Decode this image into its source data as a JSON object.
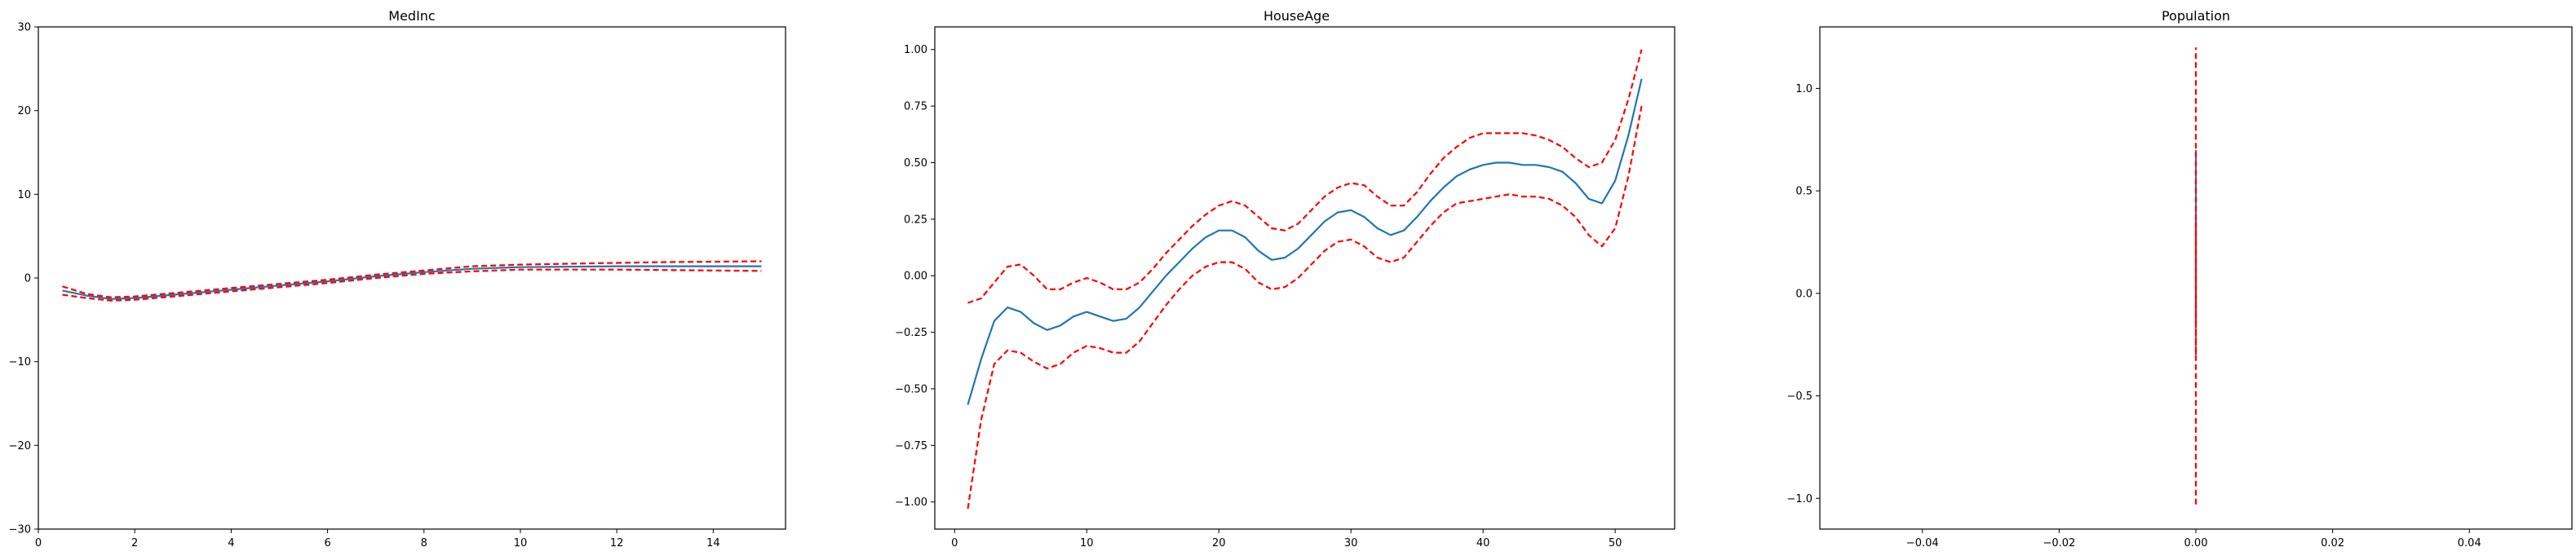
{
  "chart_data": [
    {
      "type": "line",
      "title": "MedInc",
      "xlabel": "",
      "ylabel": "",
      "xlim": [
        0,
        15.5
      ],
      "ylim": [
        -30,
        30
      ],
      "xticks": [
        0,
        2,
        4,
        6,
        8,
        10,
        12,
        14
      ],
      "yticks": [
        -30,
        -20,
        -10,
        0,
        10,
        20,
        30
      ],
      "xtick_labels": [
        "0",
        "2",
        "4",
        "6",
        "8",
        "10",
        "12",
        "14"
      ],
      "ytick_labels": [
        "−30",
        "−20",
        "−10",
        "0",
        "10",
        "20",
        "30"
      ],
      "grid": false,
      "series": [
        {
          "role": "estimate",
          "color": "#1f77b4",
          "dash": "solid",
          "x": [
            0.5,
            1,
            1.5,
            2,
            3,
            4,
            5,
            6,
            7,
            8,
            9,
            10,
            11,
            12,
            13,
            14,
            15
          ],
          "y": [
            -1.5,
            -2.1,
            -2.5,
            -2.4,
            -1.9,
            -1.4,
            -0.9,
            -0.4,
            0.2,
            0.7,
            1.1,
            1.3,
            1.35,
            1.4,
            1.4,
            1.4,
            1.4
          ]
        },
        {
          "role": "upper-bound",
          "color": "#ff0000",
          "dash": "dashed",
          "x": [
            0.5,
            1,
            1.5,
            2,
            3,
            4,
            5,
            6,
            7,
            8,
            9,
            10,
            11,
            12,
            13,
            14,
            15
          ],
          "y": [
            -1.0,
            -1.9,
            -2.3,
            -2.2,
            -1.7,
            -1.2,
            -0.7,
            -0.2,
            0.4,
            0.9,
            1.4,
            1.6,
            1.7,
            1.8,
            1.9,
            1.95,
            2.0
          ]
        },
        {
          "role": "lower-bound",
          "color": "#ff0000",
          "dash": "dashed",
          "x": [
            0.5,
            1,
            1.5,
            2,
            3,
            4,
            5,
            6,
            7,
            8,
            9,
            10,
            11,
            12,
            13,
            14,
            15
          ],
          "y": [
            -2.0,
            -2.4,
            -2.7,
            -2.6,
            -2.1,
            -1.6,
            -1.1,
            -0.6,
            0.0,
            0.5,
            0.8,
            1.0,
            1.0,
            1.0,
            0.95,
            0.9,
            0.85
          ]
        }
      ]
    },
    {
      "type": "line",
      "title": "HouseAge",
      "xlabel": "",
      "ylabel": "",
      "xlim": [
        -1.5,
        54.5
      ],
      "ylim": [
        -1.12,
        1.1
      ],
      "xticks": [
        0,
        10,
        20,
        30,
        40,
        50
      ],
      "yticks": [
        -1.0,
        -0.75,
        -0.5,
        -0.25,
        0.0,
        0.25,
        0.5,
        0.75,
        1.0
      ],
      "xtick_labels": [
        "0",
        "10",
        "20",
        "30",
        "40",
        "50"
      ],
      "ytick_labels": [
        "−1.00",
        "−0.75",
        "−0.50",
        "−0.25",
        "0.00",
        "0.25",
        "0.50",
        "0.75",
        "1.00"
      ],
      "grid": false,
      "series": [
        {
          "role": "estimate",
          "color": "#1f77b4",
          "dash": "solid",
          "x": [
            1,
            2,
            3,
            4,
            5,
            6,
            7,
            8,
            9,
            10,
            11,
            12,
            13,
            14,
            15,
            16,
            17,
            18,
            19,
            20,
            21,
            22,
            23,
            24,
            25,
            26,
            27,
            28,
            29,
            30,
            31,
            32,
            33,
            34,
            35,
            36,
            37,
            38,
            39,
            40,
            41,
            42,
            43,
            44,
            45,
            46,
            47,
            48,
            49,
            50,
            51,
            52
          ],
          "y": [
            -0.57,
            -0.37,
            -0.2,
            -0.14,
            -0.16,
            -0.21,
            -0.24,
            -0.22,
            -0.18,
            -0.16,
            -0.18,
            -0.2,
            -0.19,
            -0.14,
            -0.07,
            0.0,
            0.06,
            0.12,
            0.17,
            0.2,
            0.2,
            0.17,
            0.11,
            0.07,
            0.08,
            0.12,
            0.18,
            0.24,
            0.28,
            0.29,
            0.26,
            0.21,
            0.18,
            0.2,
            0.26,
            0.33,
            0.39,
            0.44,
            0.47,
            0.49,
            0.5,
            0.5,
            0.49,
            0.49,
            0.48,
            0.46,
            0.41,
            0.34,
            0.32,
            0.42,
            0.62,
            0.87
          ]
        },
        {
          "role": "upper-bound",
          "color": "#ff0000",
          "dash": "dashed",
          "x": [
            1,
            2,
            3,
            4,
            5,
            6,
            7,
            8,
            9,
            10,
            11,
            12,
            13,
            14,
            15,
            16,
            17,
            18,
            19,
            20,
            21,
            22,
            23,
            24,
            25,
            26,
            27,
            28,
            29,
            30,
            31,
            32,
            33,
            34,
            35,
            36,
            37,
            38,
            39,
            40,
            41,
            42,
            43,
            44,
            45,
            46,
            47,
            48,
            49,
            50,
            51,
            52
          ],
          "y": [
            -0.12,
            -0.1,
            -0.03,
            0.04,
            0.05,
            0.0,
            -0.06,
            -0.06,
            -0.03,
            -0.01,
            -0.03,
            -0.06,
            -0.06,
            -0.03,
            0.03,
            0.1,
            0.16,
            0.22,
            0.27,
            0.31,
            0.33,
            0.31,
            0.26,
            0.21,
            0.2,
            0.23,
            0.29,
            0.35,
            0.39,
            0.41,
            0.4,
            0.35,
            0.31,
            0.31,
            0.37,
            0.45,
            0.52,
            0.57,
            0.61,
            0.63,
            0.63,
            0.63,
            0.63,
            0.62,
            0.6,
            0.57,
            0.52,
            0.48,
            0.5,
            0.6,
            0.78,
            1.0
          ]
        },
        {
          "role": "lower-bound",
          "color": "#ff0000",
          "dash": "dashed",
          "x": [
            1,
            2,
            3,
            4,
            5,
            6,
            7,
            8,
            9,
            10,
            11,
            12,
            13,
            14,
            15,
            16,
            17,
            18,
            19,
            20,
            21,
            22,
            23,
            24,
            25,
            26,
            27,
            28,
            29,
            30,
            31,
            32,
            33,
            34,
            35,
            36,
            37,
            38,
            39,
            40,
            41,
            42,
            43,
            44,
            45,
            46,
            47,
            48,
            49,
            50,
            51,
            52
          ],
          "y": [
            -1.03,
            -0.64,
            -0.39,
            -0.33,
            -0.34,
            -0.38,
            -0.41,
            -0.39,
            -0.34,
            -0.31,
            -0.32,
            -0.34,
            -0.34,
            -0.29,
            -0.21,
            -0.13,
            -0.06,
            0.0,
            0.04,
            0.06,
            0.06,
            0.03,
            -0.03,
            -0.06,
            -0.05,
            -0.01,
            0.05,
            0.11,
            0.15,
            0.16,
            0.13,
            0.08,
            0.06,
            0.08,
            0.15,
            0.22,
            0.28,
            0.32,
            0.33,
            0.34,
            0.35,
            0.36,
            0.35,
            0.35,
            0.34,
            0.31,
            0.26,
            0.18,
            0.13,
            0.21,
            0.44,
            0.75
          ]
        }
      ]
    },
    {
      "type": "line",
      "title": "Population",
      "xlabel": "",
      "ylabel": "",
      "xlim": [
        -0.055,
        0.055
      ],
      "ylim": [
        -1.15,
        1.3
      ],
      "xticks": [
        -0.04,
        -0.02,
        0.0,
        0.02,
        0.04
      ],
      "yticks": [
        -1.0,
        -0.5,
        0.0,
        0.5,
        1.0
      ],
      "xtick_labels": [
        "−0.04",
        "−0.02",
        "0.00",
        "0.02",
        "0.04"
      ],
      "ytick_labels": [
        "−1.0",
        "−0.5",
        "0.0",
        "0.5",
        "1.0"
      ],
      "grid": false,
      "series": [
        {
          "role": "estimate",
          "color": "#1f77b4",
          "dash": "solid",
          "x": [
            0,
            0
          ],
          "y": [
            -0.15,
            0.7
          ]
        },
        {
          "role": "upper-bound",
          "color": "#ff0000",
          "dash": "dashed",
          "x": [
            0,
            0
          ],
          "y": [
            -0.3,
            1.2
          ]
        },
        {
          "role": "lower-bound",
          "color": "#ff0000",
          "dash": "dashed",
          "x": [
            0,
            0
          ],
          "y": [
            -1.03,
            0.35
          ]
        }
      ]
    }
  ]
}
